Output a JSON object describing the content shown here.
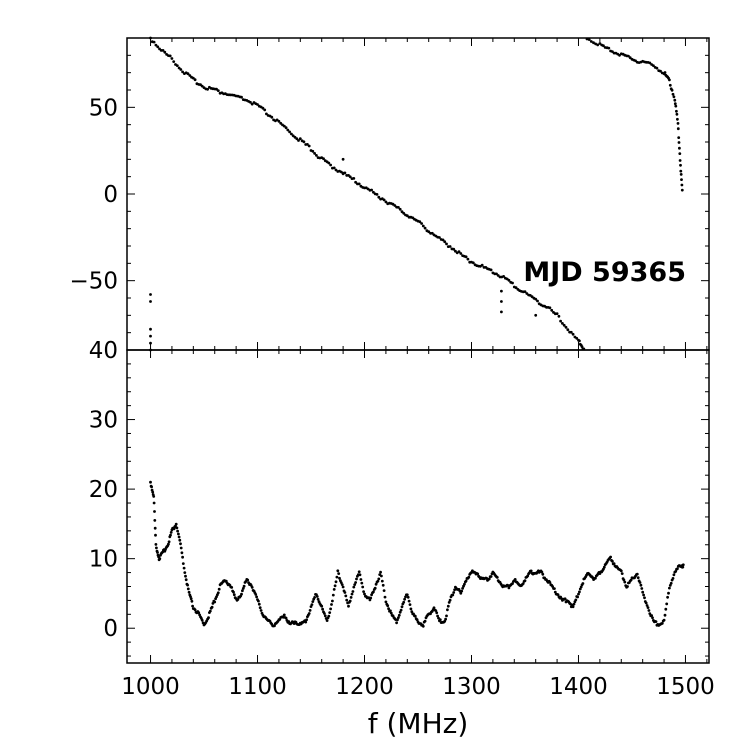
{
  "chart_data": [
    {
      "panel": "top",
      "type": "scatter",
      "xlim": [
        978,
        1522
      ],
      "ylim": [
        -90,
        90
      ],
      "xticks": [
        1000,
        1100,
        1200,
        1300,
        1400,
        1500
      ],
      "yticks": [
        50,
        0,
        -50
      ],
      "ytick_labels": [
        "50",
        "0",
        "−50"
      ],
      "ylabel": "",
      "annotation": "MJD 59365",
      "grid": false,
      "marker_color": "#000000",
      "series": [
        {
          "x": [
            1000,
            1010,
            1020,
            1030,
            1040,
            1050,
            1060,
            1070,
            1080,
            1090,
            1100,
            1110,
            1120,
            1130,
            1140,
            1150,
            1160,
            1170,
            1180,
            1190,
            1200,
            1210,
            1220,
            1230,
            1240,
            1250,
            1260,
            1270,
            1280,
            1290,
            1300,
            1310,
            1320,
            1330,
            1340,
            1350,
            1360,
            1370,
            1380,
            1390,
            1400,
            1405
          ],
          "values": [
            90,
            83,
            78,
            71,
            66,
            62,
            60,
            58,
            56,
            54,
            51,
            46,
            41,
            36,
            31,
            26,
            20,
            16,
            12,
            8,
            4,
            0,
            -4,
            -8,
            -12,
            -16,
            -21,
            -26,
            -30,
            -35,
            -39,
            -42,
            -45,
            -48,
            -53,
            -57,
            -61,
            -65,
            -70,
            -78,
            -85,
            -89
          ]
        },
        {
          "x": [
            1408,
            1420,
            1430,
            1440,
            1450,
            1460,
            1470,
            1480,
            1485,
            1490,
            1493,
            1495,
            1497
          ],
          "values": [
            90,
            86,
            83,
            80,
            78,
            76,
            74,
            70,
            65,
            55,
            40,
            20,
            2
          ]
        },
        {
          "x": [
            1000,
            1000,
            1000,
            1000,
            1000,
            1000
          ],
          "values": [
            -58,
            -62,
            -78,
            -82,
            -86,
            -90
          ]
        },
        {
          "x": [
            1180,
            1180,
            1328,
            1328,
            1328,
            1360
          ],
          "values": [
            20,
            12,
            -56,
            -62,
            -68,
            -70
          ]
        }
      ]
    },
    {
      "panel": "bottom",
      "type": "scatter",
      "xlim": [
        978,
        1522
      ],
      "ylim": [
        -5,
        40
      ],
      "xticks": [
        1000,
        1100,
        1200,
        1300,
        1400,
        1500
      ],
      "xtick_labels": [
        "1000",
        "1100",
        "1200",
        "1300",
        "1400",
        "1500"
      ],
      "yticks": [
        40,
        30,
        20,
        10,
        0
      ],
      "ytick_labels": [
        "40",
        "30",
        "20",
        "10",
        "0"
      ],
      "xlabel": "f (MHz)",
      "ylabel": "",
      "grid": false,
      "marker_color": "#000000",
      "series": [
        {
          "x": [
            1000,
            1003,
            1005,
            1008,
            1012,
            1016,
            1020,
            1024,
            1028,
            1032,
            1036,
            1040,
            1045,
            1050,
            1055,
            1060,
            1065,
            1070,
            1075,
            1080,
            1085,
            1090,
            1095,
            1100,
            1105,
            1110,
            1115,
            1120,
            1125,
            1130,
            1135,
            1140,
            1145,
            1150,
            1155,
            1160,
            1165,
            1170,
            1175,
            1180,
            1185,
            1190,
            1195,
            1200,
            1205,
            1210,
            1215,
            1220,
            1225,
            1230,
            1235,
            1240,
            1245,
            1250,
            1255,
            1260,
            1265,
            1270,
            1275,
            1280,
            1285,
            1290,
            1295,
            1300,
            1305,
            1310,
            1315,
            1320,
            1325,
            1330,
            1335,
            1340,
            1345,
            1350,
            1355,
            1360,
            1365,
            1370,
            1375,
            1380,
            1385,
            1390,
            1395,
            1400,
            1405,
            1410,
            1415,
            1420,
            1425,
            1430,
            1435,
            1440,
            1445,
            1450,
            1455,
            1460,
            1465,
            1470,
            1475,
            1480,
            1485,
            1490,
            1495,
            1498
          ],
          "values": [
            21,
            19,
            12,
            10,
            11,
            12,
            14,
            15,
            12,
            8,
            5,
            3,
            2,
            0.5,
            2,
            4,
            6,
            7,
            6,
            4,
            5,
            7,
            6,
            4,
            2,
            1,
            0.5,
            1,
            2,
            0.5,
            1,
            0.5,
            1,
            3,
            5,
            3,
            1,
            4,
            8,
            6,
            3,
            6,
            8,
            5,
            4,
            6,
            8,
            4,
            2,
            1,
            3,
            5,
            2,
            1,
            0.5,
            2,
            3,
            1,
            1,
            4,
            6,
            5,
            7,
            8,
            8,
            7,
            7,
            8,
            7,
            6,
            6,
            7,
            6,
            7,
            8,
            8,
            8,
            7,
            6,
            5,
            4,
            4,
            3,
            5,
            7,
            8,
            7,
            8,
            9,
            10,
            9,
            8,
            6,
            7,
            8,
            5,
            3,
            1,
            0.5,
            1,
            6,
            8,
            9,
            9
          ]
        }
      ]
    }
  ]
}
